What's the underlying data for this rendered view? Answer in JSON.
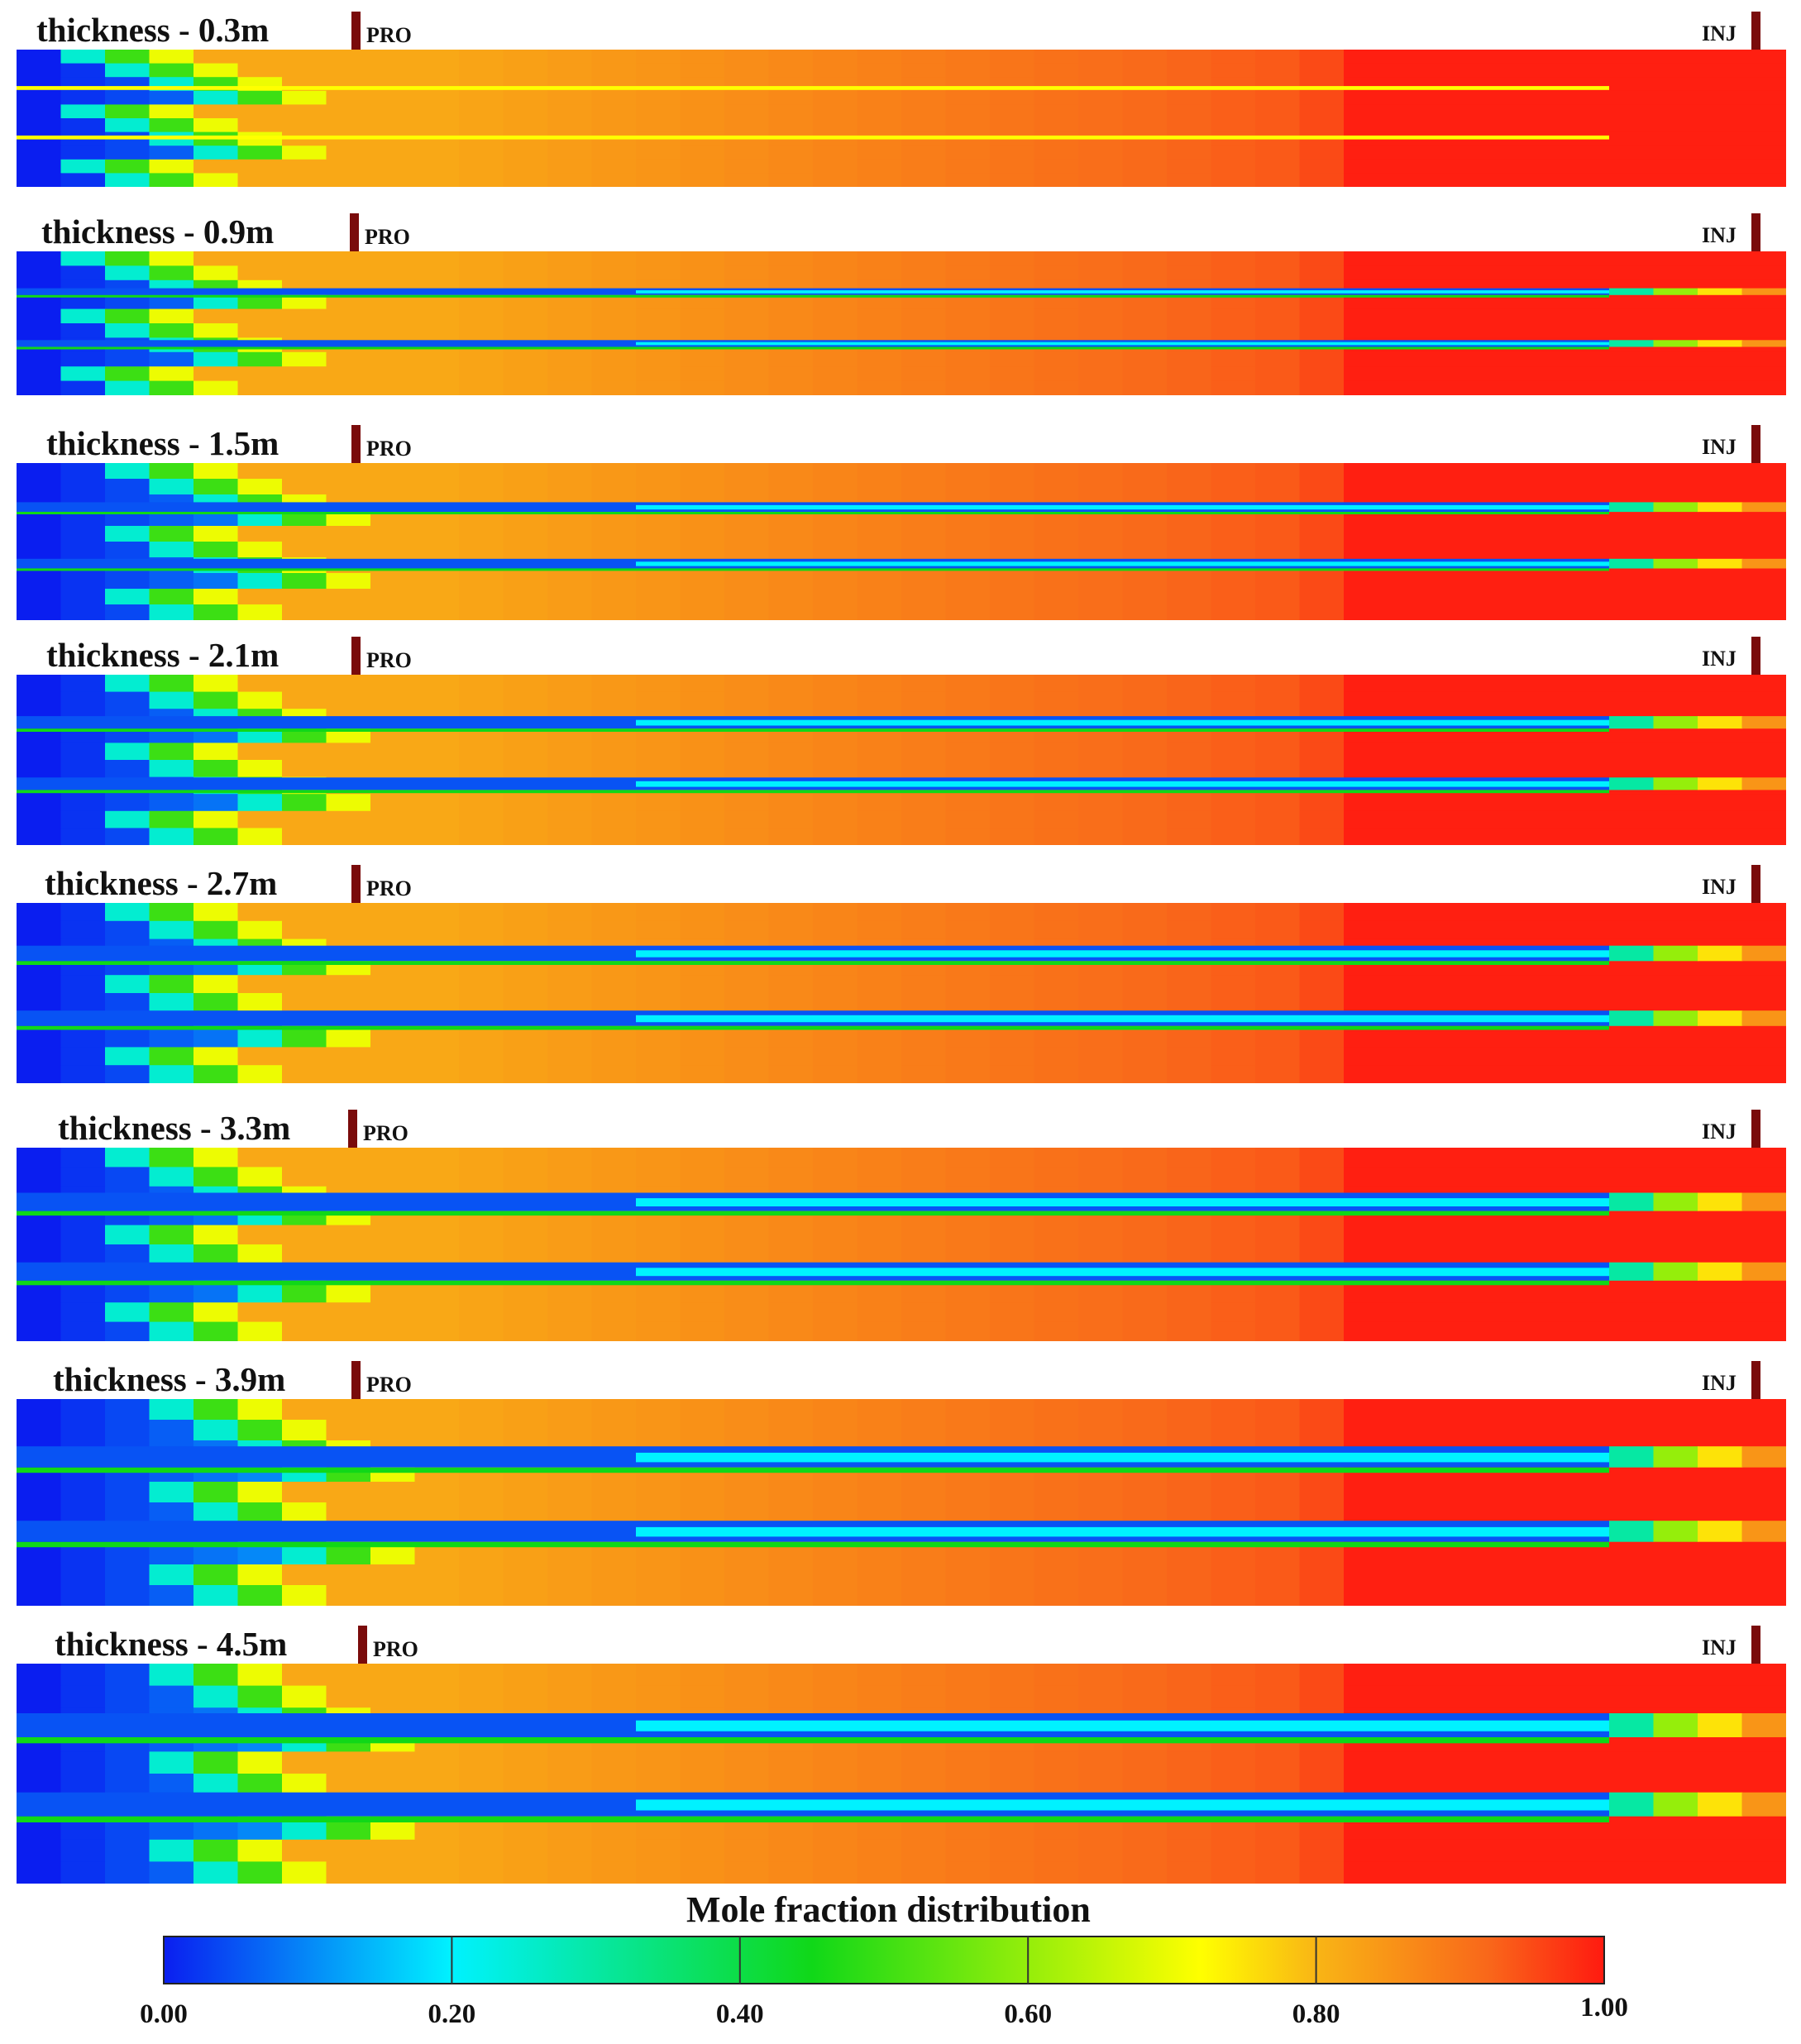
{
  "panels": [
    {
      "title": "thickness - 0.3m",
      "thickness_m": 0.3,
      "producer_label": "PRO",
      "injector_label": "INJ"
    },
    {
      "title": "thickness - 0.9m",
      "thickness_m": 0.9,
      "producer_label": "PRO",
      "injector_label": "INJ"
    },
    {
      "title": "thickness - 1.5m",
      "thickness_m": 1.5,
      "producer_label": "PRO",
      "injector_label": "INJ"
    },
    {
      "title": "thickness - 2.1m",
      "thickness_m": 2.1,
      "producer_label": "PRO",
      "injector_label": "INJ"
    },
    {
      "title": "thickness - 2.7m",
      "thickness_m": 2.7,
      "producer_label": "PRO",
      "injector_label": "INJ"
    },
    {
      "title": "thickness - 3.3m",
      "thickness_m": 3.3,
      "producer_label": "PRO",
      "injector_label": "INJ"
    },
    {
      "title": "thickness - 3.9m",
      "thickness_m": 3.9,
      "producer_label": "PRO",
      "injector_label": "INJ"
    },
    {
      "title": "thickness - 4.5m",
      "thickness_m": 4.5,
      "producer_label": "PRO",
      "injector_label": "INJ"
    }
  ],
  "colorbar": {
    "title": "Mole fraction distribution",
    "ticks": [
      "0.00",
      "0.20",
      "0.40",
      "0.60",
      "0.80",
      "1.00"
    ],
    "range": [
      0,
      1
    ],
    "colors": [
      "#0a1ef0",
      "#00f2ff",
      "#10d818",
      "#ffff00",
      "#f79a1e",
      "#ff1a10"
    ]
  }
}
